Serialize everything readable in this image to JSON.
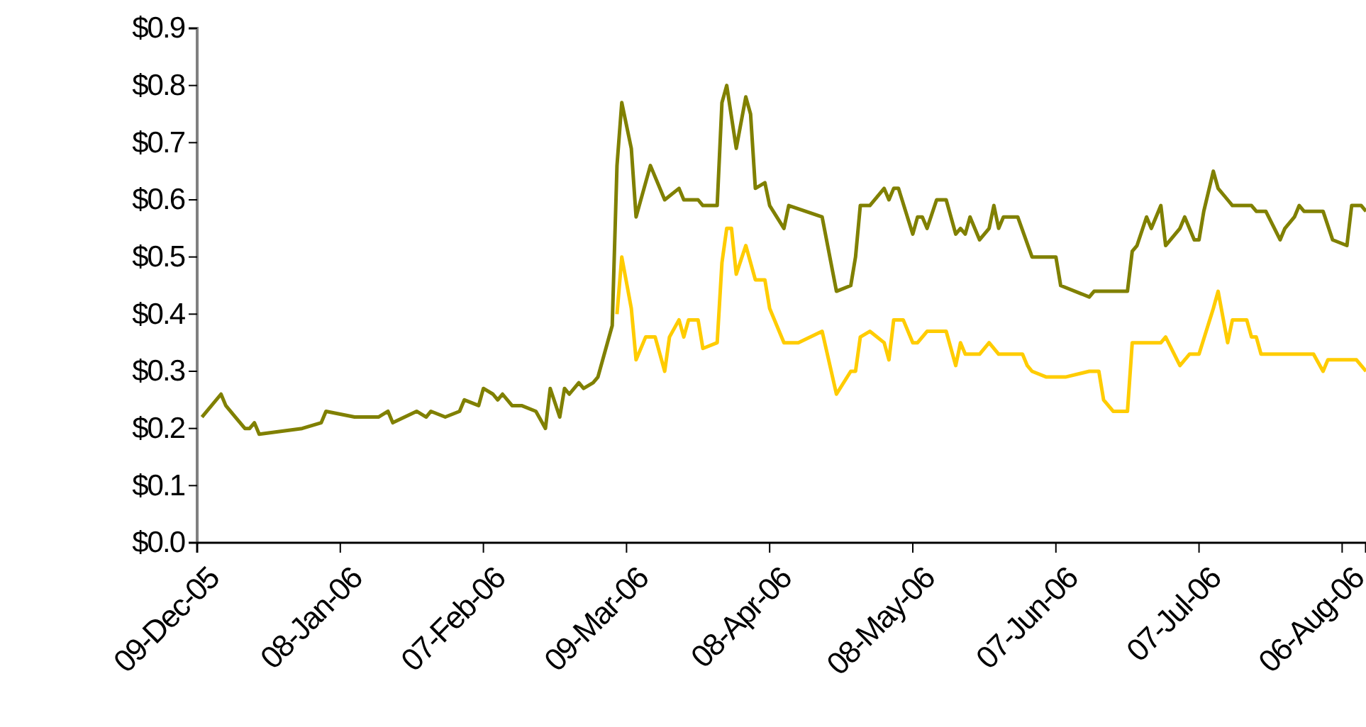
{
  "chart_data": {
    "type": "line",
    "xlim": [
      "2005-12-09",
      "2006-08-11"
    ],
    "xticks": [
      {
        "value": "2005-12-09",
        "label": "09-Dec-05"
      },
      {
        "value": "2006-01-08",
        "label": "08-Jan-06"
      },
      {
        "value": "2006-02-07",
        "label": "07-Feb-06"
      },
      {
        "value": "2006-03-09",
        "label": "09-Mar-06"
      },
      {
        "value": "2006-04-08",
        "label": "08-Apr-06"
      },
      {
        "value": "2006-05-08",
        "label": "08-May-06"
      },
      {
        "value": "2006-06-07",
        "label": "07-Jun-06"
      },
      {
        "value": "2006-07-07",
        "label": "07-Jul-06"
      },
      {
        "value": "2006-08-06",
        "label": "06-Aug-06"
      }
    ],
    "ylim": [
      0,
      0.9
    ],
    "yticks": [
      {
        "value": 0,
        "label": "$0.0"
      },
      {
        "value": 0.1,
        "label": "$0.1"
      },
      {
        "value": 0.2,
        "label": "$0.2"
      },
      {
        "value": 0.3,
        "label": "$0.3"
      },
      {
        "value": 0.4,
        "label": "$0.4"
      },
      {
        "value": 0.5,
        "label": "$0.5"
      },
      {
        "value": 0.6,
        "label": "$0.6"
      },
      {
        "value": 0.7,
        "label": "$0.7"
      },
      {
        "value": 0.8,
        "label": "$0.8"
      },
      {
        "value": 0.9,
        "label": "$0.9"
      }
    ],
    "grid": false,
    "marker": "none",
    "line_style": "solid",
    "series": [
      {
        "color": "#808000",
        "x": [
          "2005-12-10",
          "2005-12-14",
          "2005-12-15",
          "2005-12-17",
          "2005-12-19",
          "2005-12-20",
          "2005-12-21",
          "2005-12-22",
          "2005-12-31",
          "2006-01-04",
          "2006-01-05",
          "2006-01-11",
          "2006-01-16",
          "2006-01-18",
          "2006-01-19",
          "2006-01-24",
          "2006-01-26",
          "2006-01-27",
          "2006-01-30",
          "2006-02-02",
          "2006-02-03",
          "2006-02-06",
          "2006-02-07",
          "2006-02-09",
          "2006-02-10",
          "2006-02-11",
          "2006-02-13",
          "2006-02-15",
          "2006-02-18",
          "2006-02-20",
          "2006-02-21",
          "2006-02-23",
          "2006-02-24",
          "2006-02-25",
          "2006-02-27",
          "2006-02-28",
          "2006-03-02",
          "2006-03-03",
          "2006-03-06",
          "2006-03-07",
          "2006-03-08",
          "2006-03-10",
          "2006-03-11",
          "2006-03-14",
          "2006-03-17",
          "2006-03-20",
          "2006-03-21",
          "2006-03-24",
          "2006-03-25",
          "2006-03-28",
          "2006-03-29",
          "2006-03-30",
          "2006-04-01",
          "2006-04-03",
          "2006-04-04",
          "2006-04-05",
          "2006-04-07",
          "2006-04-08",
          "2006-04-11",
          "2006-04-12",
          "2006-04-19",
          "2006-04-22",
          "2006-04-25",
          "2006-04-26",
          "2006-04-27",
          "2006-04-29",
          "2006-05-02",
          "2006-05-03",
          "2006-05-04",
          "2006-05-05",
          "2006-05-08",
          "2006-05-09",
          "2006-05-10",
          "2006-05-11",
          "2006-05-13",
          "2006-05-15",
          "2006-05-17",
          "2006-05-18",
          "2006-05-19",
          "2006-05-20",
          "2006-05-22",
          "2006-05-24",
          "2006-05-25",
          "2006-05-26",
          "2006-05-27",
          "2006-05-30",
          "2006-06-02",
          "2006-06-07",
          "2006-06-08",
          "2006-06-14",
          "2006-06-15",
          "2006-06-22",
          "2006-06-23",
          "2006-06-24",
          "2006-06-26",
          "2006-06-27",
          "2006-06-29",
          "2006-06-30",
          "2006-07-03",
          "2006-07-04",
          "2006-07-06",
          "2006-07-07",
          "2006-07-08",
          "2006-07-10",
          "2006-07-11",
          "2006-07-13",
          "2006-07-14",
          "2006-07-18",
          "2006-07-19",
          "2006-07-21",
          "2006-07-24",
          "2006-07-25",
          "2006-07-27",
          "2006-07-28",
          "2006-07-29",
          "2006-08-02",
          "2006-08-04",
          "2006-08-07",
          "2006-08-08",
          "2006-08-10",
          "2006-08-11"
        ],
        "values": [
          0.22,
          0.26,
          0.24,
          0.22,
          0.2,
          0.2,
          0.21,
          0.19,
          0.2,
          0.21,
          0.23,
          0.22,
          0.22,
          0.23,
          0.21,
          0.23,
          0.22,
          0.23,
          0.22,
          0.23,
          0.25,
          0.24,
          0.27,
          0.26,
          0.25,
          0.26,
          0.24,
          0.24,
          0.23,
          0.2,
          0.27,
          0.22,
          0.27,
          0.26,
          0.28,
          0.27,
          0.28,
          0.29,
          0.38,
          0.66,
          0.77,
          0.69,
          0.57,
          0.66,
          0.6,
          0.62,
          0.6,
          0.6,
          0.59,
          0.59,
          0.77,
          0.8,
          0.69,
          0.78,
          0.75,
          0.62,
          0.63,
          0.59,
          0.55,
          0.59,
          0.57,
          0.44,
          0.45,
          0.5,
          0.59,
          0.59,
          0.62,
          0.6,
          0.62,
          0.62,
          0.54,
          0.57,
          0.57,
          0.55,
          0.6,
          0.6,
          0.54,
          0.55,
          0.54,
          0.57,
          0.53,
          0.55,
          0.59,
          0.55,
          0.57,
          0.57,
          0.5,
          0.5,
          0.45,
          0.43,
          0.44,
          0.44,
          0.51,
          0.52,
          0.57,
          0.55,
          0.59,
          0.52,
          0.55,
          0.57,
          0.53,
          0.53,
          0.58,
          0.65,
          0.62,
          0.6,
          0.59,
          0.59,
          0.58,
          0.58,
          0.53,
          0.55,
          0.57,
          0.59,
          0.58,
          0.58,
          0.53,
          0.52,
          0.59,
          0.59,
          0.58
        ]
      },
      {
        "color": "#ffcc00",
        "x": [
          "2006-03-07",
          "2006-03-08",
          "2006-03-10",
          "2006-03-11",
          "2006-03-13",
          "2006-03-15",
          "2006-03-17",
          "2006-03-18",
          "2006-03-20",
          "2006-03-21",
          "2006-03-22",
          "2006-03-24",
          "2006-03-25",
          "2006-03-28",
          "2006-03-29",
          "2006-03-30",
          "2006-03-31",
          "2006-04-01",
          "2006-04-03",
          "2006-04-05",
          "2006-04-07",
          "2006-04-08",
          "2006-04-11",
          "2006-04-14",
          "2006-04-19",
          "2006-04-22",
          "2006-04-25",
          "2006-04-26",
          "2006-04-27",
          "2006-04-29",
          "2006-05-02",
          "2006-05-03",
          "2006-05-04",
          "2006-05-06",
          "2006-05-08",
          "2006-05-09",
          "2006-05-11",
          "2006-05-15",
          "2006-05-17",
          "2006-05-18",
          "2006-05-19",
          "2006-05-22",
          "2006-05-24",
          "2006-05-26",
          "2006-05-31",
          "2006-06-01",
          "2006-06-02",
          "2006-06-05",
          "2006-06-09",
          "2006-06-14",
          "2006-06-16",
          "2006-06-17",
          "2006-06-19",
          "2006-06-22",
          "2006-06-23",
          "2006-06-29",
          "2006-06-30",
          "2006-07-03",
          "2006-07-05",
          "2006-07-07",
          "2006-07-10",
          "2006-07-11",
          "2006-07-13",
          "2006-07-14",
          "2006-07-17",
          "2006-07-18",
          "2006-07-19",
          "2006-07-20",
          "2006-07-31",
          "2006-08-02",
          "2006-08-03",
          "2006-08-09",
          "2006-08-11"
        ],
        "values": [
          0.4,
          0.5,
          0.41,
          0.32,
          0.36,
          0.36,
          0.3,
          0.36,
          0.39,
          0.36,
          0.39,
          0.39,
          0.34,
          0.35,
          0.49,
          0.55,
          0.55,
          0.47,
          0.52,
          0.46,
          0.46,
          0.41,
          0.35,
          0.35,
          0.37,
          0.26,
          0.3,
          0.3,
          0.36,
          0.37,
          0.35,
          0.32,
          0.39,
          0.39,
          0.35,
          0.35,
          0.37,
          0.37,
          0.31,
          0.35,
          0.33,
          0.33,
          0.35,
          0.33,
          0.33,
          0.31,
          0.3,
          0.29,
          0.29,
          0.3,
          0.3,
          0.25,
          0.23,
          0.23,
          0.35,
          0.35,
          0.36,
          0.31,
          0.33,
          0.33,
          0.41,
          0.44,
          0.35,
          0.39,
          0.39,
          0.36,
          0.36,
          0.33,
          0.33,
          0.3,
          0.32,
          0.32,
          0.3
        ]
      }
    ]
  }
}
